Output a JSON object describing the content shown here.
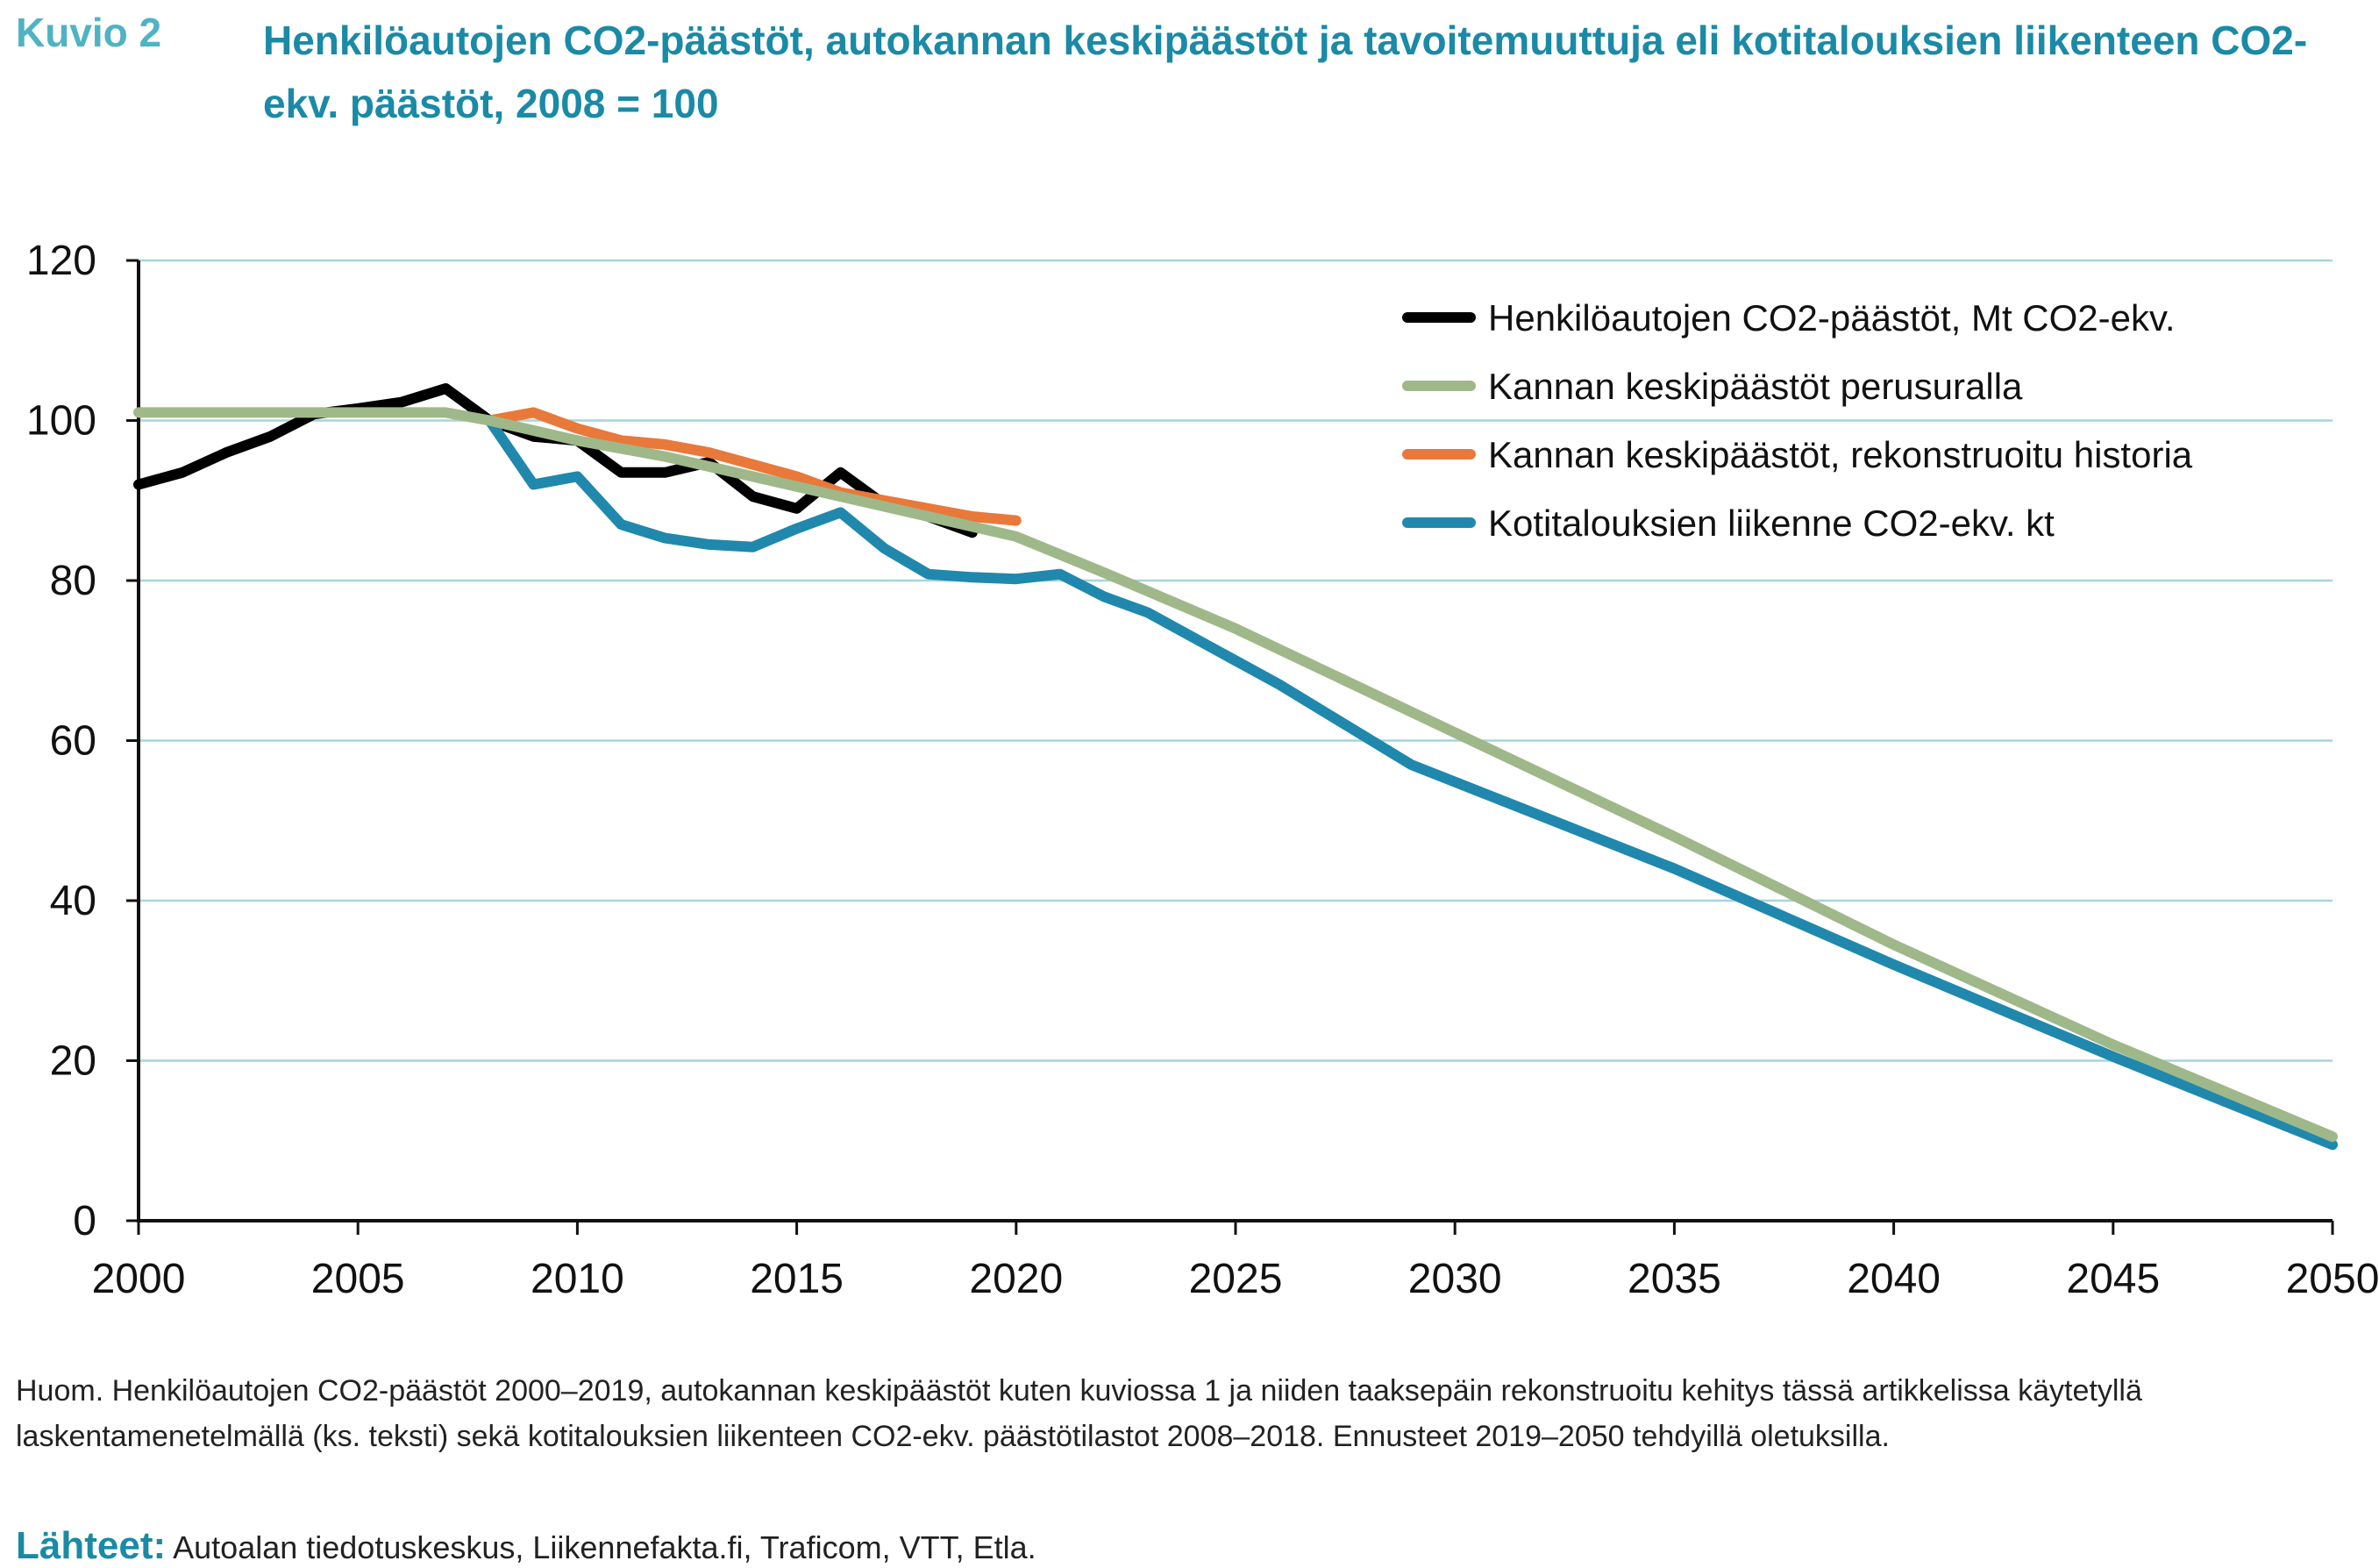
{
  "header": {
    "figure_label": "Kuvio 2",
    "title": "Henkilöautojen CO2-päästöt, autokannan keskipäästöt ja tavoitemuuttuja eli kotitalouksien liikenteen CO2-ekv. päästöt, 2008 = 100"
  },
  "footer": {
    "note": "Huom. Henkilöautojen CO2-päästöt 2000–2019, autokannan keskipäästöt kuten kuviossa 1 ja niiden taaksepäin rekonstruoitu kehitys tässä artikkelissa käytetyllä laskentamenetelmällä (ks. teksti) sekä kotitalouksien liikenteen CO2-ekv. päästötilastot 2008–2018. Ennusteet 2019–2050 tehdyillä oletuksilla.",
    "sources_label": "Lähteet:",
    "sources_text": "Autoalan tiedotuskeskus, Liikennefakta.fi, Traficom, VTT, Etla."
  },
  "chart_data": {
    "type": "line",
    "xlim": [
      2000,
      2050
    ],
    "ylim": [
      0,
      120
    ],
    "x_ticks": [
      "2000",
      "2005",
      "2010",
      "2015",
      "2020",
      "2025",
      "2030",
      "2035",
      "2040",
      "2045",
      "2050"
    ],
    "y_ticks": [
      "0",
      "20",
      "40",
      "60",
      "80",
      "100",
      "120"
    ],
    "grid": "horizontal",
    "legend_position": "top-right",
    "series": [
      {
        "name": "Henkilöautojen CO2-päästöt, Mt CO2-ekv.",
        "color": "#000000",
        "x": [
          2000,
          2001,
          2002,
          2003,
          2004,
          2005,
          2006,
          2007,
          2008,
          2009,
          2010,
          2011,
          2012,
          2013,
          2014,
          2015,
          2016,
          2017,
          2018,
          2019
        ],
        "y": [
          92,
          93.5,
          96,
          98,
          100.8,
          101.5,
          102.3,
          104,
          100,
          98,
          97.5,
          93.5,
          93.5,
          94.8,
          90.5,
          89,
          93.5,
          89.5,
          88,
          86
        ]
      },
      {
        "name": "Kannan keskipäästöt perusuralla",
        "color": "#9fb88a",
        "x": [
          2000,
          2005,
          2007,
          2008,
          2010,
          2012,
          2014,
          2016,
          2018,
          2020,
          2022,
          2025,
          2030,
          2035,
          2040,
          2045,
          2050
        ],
        "y": [
          101,
          101,
          101,
          100,
          97.5,
          95.5,
          93,
          90.5,
          88,
          85.5,
          81,
          74,
          61,
          48,
          34.5,
          22,
          10.5
        ]
      },
      {
        "name": "Kannan keskipäästöt, rekonstruoitu historia",
        "color": "#e8793a",
        "x": [
          2008,
          2009,
          2010,
          2011,
          2012,
          2013,
          2014,
          2015,
          2016,
          2017,
          2018,
          2019,
          2020
        ],
        "y": [
          100,
          101,
          99,
          97.5,
          97,
          96,
          94.5,
          93,
          91,
          90,
          89,
          88,
          87.5
        ]
      },
      {
        "name": "Kotitalouksien liikenne CO2-ekv. kt",
        "color": "#2088ad",
        "x": [
          2008,
          2009,
          2010,
          2011,
          2012,
          2013,
          2014,
          2015,
          2016,
          2017,
          2018,
          2019,
          2020,
          2021,
          2022,
          2023,
          2025,
          2026,
          2029,
          2035,
          2040,
          2045,
          2050
        ],
        "y": [
          100,
          92,
          93,
          87,
          85.3,
          84.5,
          84.2,
          86.5,
          88.5,
          84,
          80.8,
          80.4,
          80.2,
          80.8,
          78,
          76,
          70,
          67,
          57,
          44,
          32,
          20.5,
          9.5
        ]
      }
    ]
  }
}
